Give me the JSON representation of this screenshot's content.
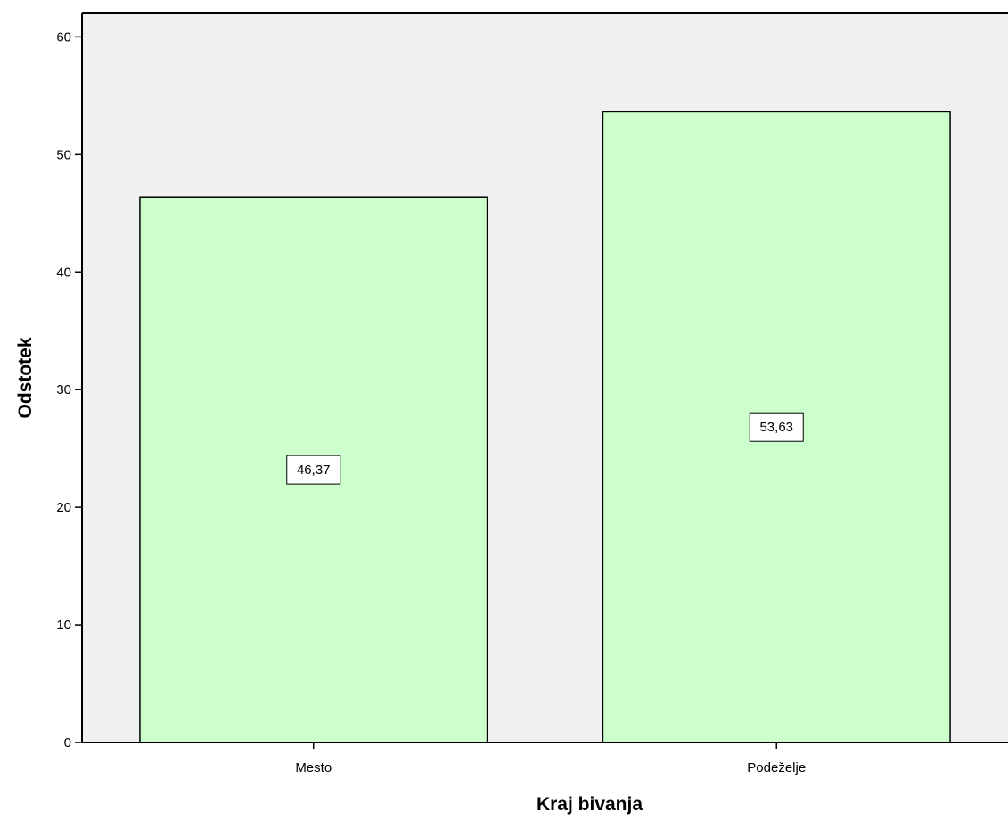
{
  "chart_data": {
    "type": "bar",
    "title": "",
    "xlabel": "Kraj bivanja",
    "ylabel": "Odstotek",
    "categories": [
      "Mesto",
      "Podeželje"
    ],
    "values": [
      46.37,
      53.63
    ],
    "value_labels": [
      "46,37",
      "53,63"
    ],
    "ylim": [
      0,
      62
    ],
    "yticks": [
      0,
      10,
      20,
      30,
      40,
      50,
      60
    ],
    "grid": false,
    "legend": "none",
    "colors": {
      "plot_background": "#f0f0f0",
      "bar_fill": "#ccffcc",
      "bar_stroke": "#000000",
      "axis": "#000000"
    }
  }
}
